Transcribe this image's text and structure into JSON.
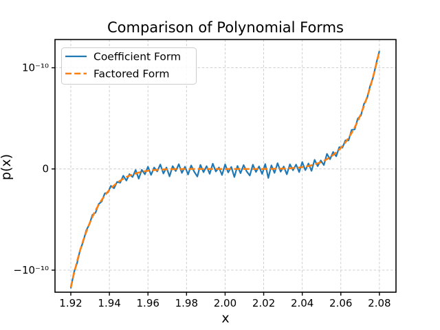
{
  "figure": {
    "background": "#ffffff"
  },
  "chart_data": {
    "type": "line",
    "title": "Comparison of Polynomial Forms",
    "xlabel": "x",
    "ylabel": "p(x)",
    "grid": true,
    "grid_style": "dashed",
    "legend_position": "upper left",
    "xlim": [
      1.9118,
      2.0886
    ],
    "y_unit": "1e-10",
    "ylim_e10": [
      -1.218,
      1.279
    ],
    "x_ticks": [
      1.92,
      1.94,
      1.96,
      1.98,
      2.0,
      2.02,
      2.04,
      2.06,
      2.08
    ],
    "x_tick_labels": [
      "1.92",
      "1.94",
      "1.96",
      "1.98",
      "2.00",
      "2.02",
      "2.04",
      "2.06",
      "2.08"
    ],
    "y_ticks_e10": [
      1,
      0,
      -1
    ],
    "y_tick_labels": [
      "10⁻¹⁰",
      "0",
      "−10⁻¹⁰"
    ],
    "x": [
      1.92,
      1.9216,
      1.9232,
      1.9248,
      1.9264,
      1.928,
      1.9296,
      1.9312,
      1.9328,
      1.9344,
      1.936,
      1.9376,
      1.9392,
      1.9408,
      1.9424,
      1.944,
      1.9456,
      1.9472,
      1.9488,
      1.9504,
      1.952,
      1.9536,
      1.9552,
      1.9568,
      1.9584,
      1.96,
      1.9616,
      1.9632,
      1.9648,
      1.9664,
      1.968,
      1.9696,
      1.9712,
      1.9728,
      1.9744,
      1.976,
      1.9776,
      1.9792,
      1.9808,
      1.9824,
      1.984,
      1.9856,
      1.9872,
      1.9888,
      1.9904,
      1.992,
      1.9936,
      1.9952,
      1.9968,
      1.9984,
      2.0,
      2.0016,
      2.0032,
      2.0048,
      2.0064,
      2.008,
      2.0096,
      2.0112,
      2.0128,
      2.0144,
      2.016,
      2.0176,
      2.0192,
      2.0208,
      2.0224,
      2.024,
      2.0256,
      2.0272,
      2.0288,
      2.0304,
      2.032,
      2.0336,
      2.0352,
      2.0368,
      2.0384,
      2.04,
      2.0416,
      2.0432,
      2.0448,
      2.0464,
      2.048,
      2.0496,
      2.0512,
      2.0528,
      2.0544,
      2.056,
      2.0576,
      2.0592,
      2.0608,
      2.0624,
      2.064,
      2.0656,
      2.0672,
      2.0688,
      2.0704,
      2.072,
      2.0736,
      2.0752,
      2.0768,
      2.0784,
      2.08
    ],
    "series": [
      {
        "name": "Coefficient Form",
        "color": "#1f77b4",
        "style": "solid",
        "line_width": 2.2,
        "values_e10": [
          -1.18,
          -1.024,
          -0.934,
          -0.803,
          -0.72,
          -0.607,
          -0.549,
          -0.454,
          -0.433,
          -0.348,
          -0.322,
          -0.242,
          -0.233,
          -0.167,
          -0.191,
          -0.128,
          -0.136,
          -0.067,
          -0.115,
          -0.051,
          -0.08,
          -0.01,
          -0.096,
          -0.009,
          -0.053,
          0.022,
          -0.059,
          0.014,
          -0.024,
          0.044,
          -0.045,
          0.014,
          -0.073,
          0.028,
          -0.021,
          0.047,
          -0.039,
          0.022,
          -0.055,
          0.035,
          -0.028,
          -0.075,
          0.04,
          -0.032,
          0.028,
          -0.048,
          0.052,
          -0.025,
          0.015,
          -0.06,
          0.045,
          -0.035,
          0.02,
          -0.08,
          0.03,
          -0.042,
          0.038,
          -0.025,
          -0.065,
          0.042,
          -0.03,
          0.025,
          -0.05,
          0.048,
          -0.089,
          0.036,
          -0.039,
          0.057,
          -0.027,
          0.024,
          -0.053,
          0.046,
          -0.013,
          0.043,
          -0.031,
          0.068,
          -0.012,
          0.054,
          -0.019,
          0.09,
          0.027,
          0.084,
          0.038,
          0.149,
          0.096,
          0.168,
          0.125,
          0.216,
          0.21,
          0.283,
          0.282,
          0.386,
          0.391,
          0.498,
          0.528,
          0.642,
          0.699,
          0.822,
          0.908,
          1.046,
          1.165
        ]
      },
      {
        "name": "Factored Form",
        "color": "#ff7f0e",
        "style": "dashed",
        "line_width": 2.6,
        "values_e10": [
          -1.17,
          -1.036,
          -0.916,
          -0.807,
          -0.709,
          -0.622,
          -0.543,
          -0.473,
          -0.411,
          -0.356,
          -0.307,
          -0.263,
          -0.225,
          -0.192,
          -0.163,
          -0.138,
          -0.116,
          -0.097,
          -0.08,
          -0.066,
          -0.055,
          -0.045,
          -0.036,
          -0.029,
          -0.023,
          -0.018,
          -0.014,
          -0.011,
          -0.009,
          -0.006,
          -0.005,
          -0.004,
          -0.003,
          -0.002,
          -0.001,
          -0.001,
          -0.001,
          0,
          0,
          0,
          0,
          0,
          0,
          0,
          0,
          0,
          0,
          0,
          0,
          0,
          0,
          0,
          0,
          0,
          0,
          0,
          0,
          0,
          0,
          0,
          0,
          0,
          0,
          0,
          0.001,
          0.001,
          0.001,
          0.002,
          0.003,
          0.004,
          0.005,
          0.006,
          0.009,
          0.011,
          0.014,
          0.018,
          0.023,
          0.029,
          0.036,
          0.045,
          0.055,
          0.066,
          0.08,
          0.097,
          0.116,
          0.138,
          0.163,
          0.192,
          0.225,
          0.263,
          0.307,
          0.356,
          0.411,
          0.473,
          0.543,
          0.622,
          0.709,
          0.807,
          0.916,
          1.036,
          1.17
        ]
      }
    ]
  },
  "colors": {
    "coefficient_line": "#1f77b4",
    "factored_line": "#ff7f0e",
    "grid": "#c9c9c9",
    "spine": "#000000",
    "text": "#000000",
    "legend_border": "#cccccc"
  }
}
